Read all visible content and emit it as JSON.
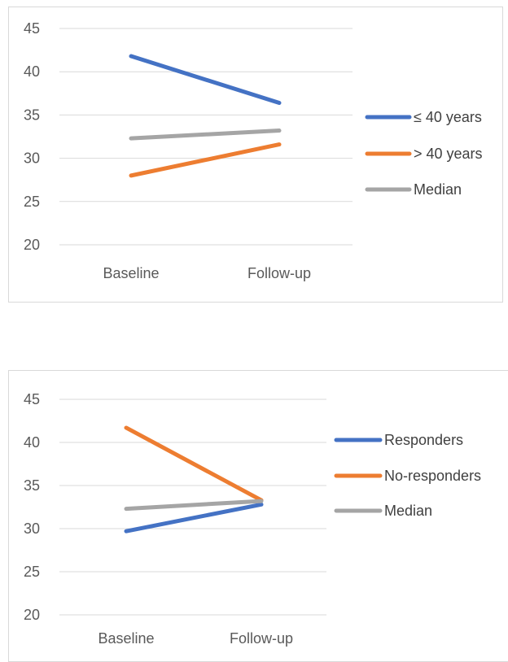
{
  "colors": {
    "blue": "#4472C4",
    "orange": "#ED7D31",
    "gray": "#A5A5A5",
    "grid": "#d9d9d9"
  },
  "chart_data": [
    {
      "type": "line",
      "categories": [
        "Baseline",
        "Follow-up"
      ],
      "ylim": [
        20,
        45
      ],
      "y_ticks": [
        45,
        40,
        35,
        30,
        25,
        20
      ],
      "grid": true,
      "legend_position": "right",
      "series": [
        {
          "name": "≤ 40 years",
          "color": "#4472C4",
          "values": [
            41.8,
            36.4
          ]
        },
        {
          "name": "> 40 years",
          "color": "#ED7D31",
          "values": [
            28.0,
            31.6
          ]
        },
        {
          "name": "Median",
          "color": "#A5A5A5",
          "values": [
            32.3,
            33.2
          ]
        }
      ]
    },
    {
      "type": "line",
      "categories": [
        "Baseline",
        "Follow-up"
      ],
      "ylim": [
        20,
        45
      ],
      "y_ticks": [
        45,
        40,
        35,
        30,
        25,
        20
      ],
      "grid": true,
      "legend_position": "right",
      "series": [
        {
          "name": "Responders",
          "color": "#4472C4",
          "values": [
            29.7,
            32.8
          ]
        },
        {
          "name": "No-responders",
          "color": "#ED7D31",
          "values": [
            41.7,
            33.3
          ]
        },
        {
          "name": "Median",
          "color": "#A5A5A5",
          "values": [
            32.3,
            33.2
          ]
        }
      ]
    }
  ]
}
